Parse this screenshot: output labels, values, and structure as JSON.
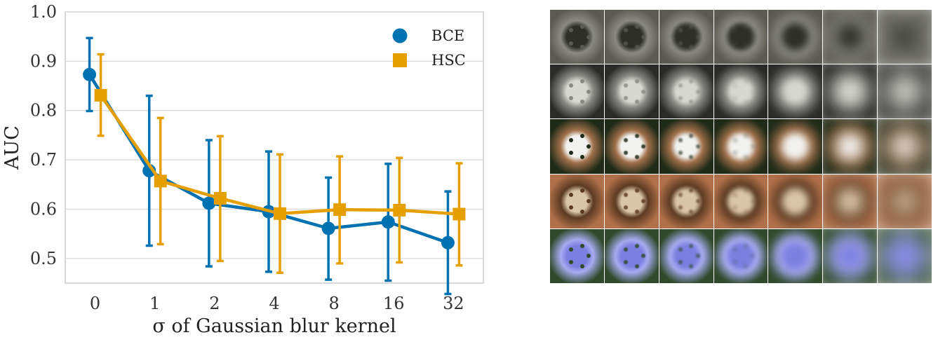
{
  "chart_data": {
    "type": "line",
    "xlabel": "σ of Gaussian blur kernel",
    "ylabel": "AUC",
    "categories": [
      "0",
      "1",
      "2",
      "4",
      "8",
      "16",
      "32"
    ],
    "ylim": [
      0.45,
      1.0
    ],
    "yticks": [
      "0.5",
      "0.6",
      "0.7",
      "0.8",
      "0.9",
      "1.0"
    ],
    "grid": true,
    "legend_position": "top-right",
    "series": [
      {
        "name": "BCE",
        "marker": "circle",
        "color": "#0072b2",
        "values": [
          0.873,
          0.678,
          0.612,
          0.595,
          0.561,
          0.574,
          0.532
        ],
        "err_low": [
          0.799,
          0.526,
          0.484,
          0.473,
          0.457,
          0.455,
          0.428
        ],
        "err_high": [
          0.947,
          0.83,
          0.74,
          0.717,
          0.664,
          0.692,
          0.636
        ]
      },
      {
        "name": "HSC",
        "marker": "square",
        "color": "#e69f00",
        "values": [
          0.831,
          0.657,
          0.622,
          0.591,
          0.599,
          0.598,
          0.59
        ],
        "err_low": [
          0.749,
          0.529,
          0.495,
          0.471,
          0.49,
          0.492,
          0.486
        ],
        "err_high": [
          0.914,
          0.785,
          0.748,
          0.711,
          0.707,
          0.704,
          0.693
        ]
      }
    ]
  },
  "image_grid": {
    "columns": 7,
    "rows": [
      {
        "subject": "landscape-with-trees",
        "colors": [
          "#5a5a52",
          "#2e3028",
          "#8a8a80",
          "#7d6a55"
        ]
      },
      {
        "subject": "machine-part",
        "colors": [
          "#2a2a28",
          "#d8d8d2",
          "#888884",
          "#bdbdb5"
        ]
      },
      {
        "subject": "white-flower",
        "colors": [
          "#1f2a18",
          "#f2f2f0",
          "#a0704a",
          "#3c5a2a"
        ]
      },
      {
        "subject": "jar-packaging",
        "colors": [
          "#b0704a",
          "#d9c5a8",
          "#5a3a22",
          "#e8e8e4"
        ]
      },
      {
        "subject": "purple-flower",
        "colors": [
          "#2e4a2a",
          "#7d7fe0",
          "#a8aaf0",
          "#4c6a3a"
        ]
      }
    ],
    "blur_levels": [
      0,
      1,
      2,
      4,
      8,
      16,
      32
    ]
  }
}
